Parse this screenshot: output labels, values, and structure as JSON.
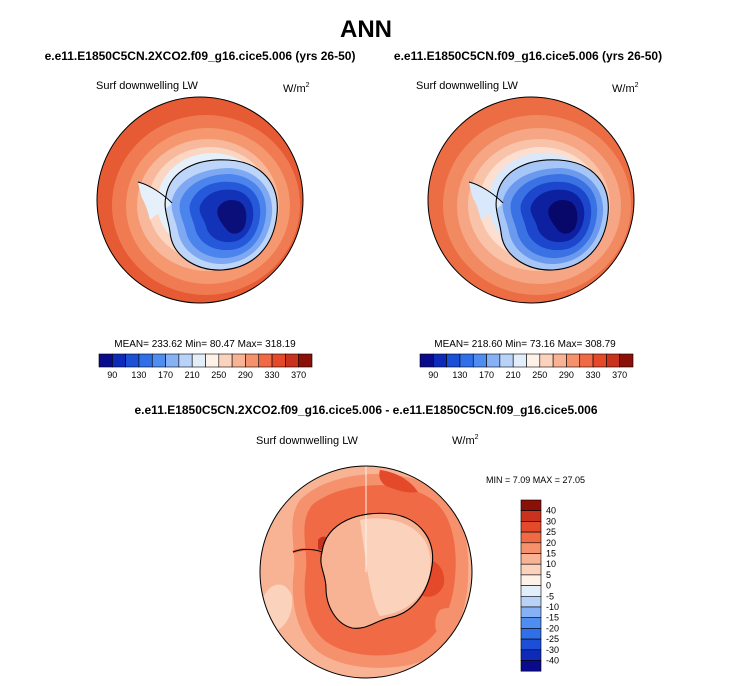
{
  "figure_title": "ANN",
  "panels": [
    {
      "case": "e.e11.E1850C5CN.2XCO2.f09_g16.cice5.006 (yrs 26-50)",
      "variable": "Surf downwelling LW",
      "units_base": "W/m",
      "units_exp": "2",
      "stats": "MEAN= 233.62  Min=  80.47  Max= 318.19"
    },
    {
      "case": "e.e11.E1850C5CN.f09_g16.cice5.006 (yrs 26-50)",
      "variable": "Surf downwelling LW",
      "units_base": "W/m",
      "units_exp": "2",
      "stats": "MEAN= 218.60  Min=  73.16  Max= 308.79"
    }
  ],
  "colorbar": {
    "labels": [
      "90",
      "130",
      "170",
      "210",
      "250",
      "290",
      "330",
      "370"
    ],
    "colors": [
      "#0a0a8c",
      "#0d2bb8",
      "#1a4fd6",
      "#2f6fe8",
      "#4f8df0",
      "#86b1f5",
      "#b9d3f8",
      "#e3eefb",
      "#fdf1e8",
      "#fbd3bd",
      "#f8b395",
      "#f5916d",
      "#f06b45",
      "#e4492a",
      "#c8321e",
      "#8a1008"
    ]
  },
  "diff_panel": {
    "title": "e.e11.E1850C5CN.2XCO2.f09_g16.cice5.006 - e.e11.E1850C5CN.f09_g16.cice5.006",
    "variable": "Surf downwelling LW",
    "units_base": "W/m",
    "units_exp": "2",
    "stats": "MIN =  7.09 MAX =  27.05"
  },
  "diff_colorbar": {
    "labels": [
      "40",
      "30",
      "25",
      "20",
      "15",
      "10",
      "5",
      "0",
      "-5",
      "-10",
      "-15",
      "-20",
      "-25",
      "-30",
      "-40"
    ],
    "colors": [
      "#8a1008",
      "#c8321e",
      "#e4492a",
      "#f06b45",
      "#f5916d",
      "#f8b395",
      "#fbd3bd",
      "#fdf1e8",
      "#e3eefb",
      "#b9d3f8",
      "#86b1f5",
      "#4f8df0",
      "#2f6fe8",
      "#1a4fd6",
      "#0d2bb8",
      "#0a0a8c"
    ]
  }
}
